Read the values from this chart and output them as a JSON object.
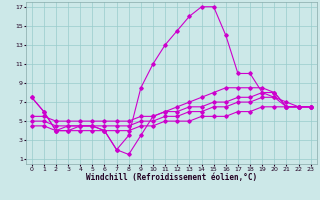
{
  "xlabel": "Windchill (Refroidissement éolien,°C)",
  "bg_color": "#cce8e8",
  "grid_color": "#99cccc",
  "line_color": "#cc00cc",
  "xlim": [
    -0.5,
    23.5
  ],
  "ylim": [
    0.5,
    17.5
  ],
  "xticks": [
    0,
    1,
    2,
    3,
    4,
    5,
    6,
    7,
    8,
    9,
    10,
    11,
    12,
    13,
    14,
    15,
    16,
    17,
    18,
    19,
    20,
    21,
    22,
    23
  ],
  "yticks": [
    1,
    3,
    5,
    7,
    9,
    11,
    13,
    15,
    17
  ],
  "line1_x": [
    0,
    1,
    2,
    3,
    4,
    5,
    6,
    7,
    8,
    9,
    10,
    11,
    12,
    13,
    14,
    15,
    16,
    17,
    18,
    19,
    20,
    21,
    22,
    23
  ],
  "line1_y": [
    7.5,
    6.0,
    4.0,
    4.0,
    4.5,
    4.5,
    4.0,
    2.0,
    3.5,
    8.5,
    11.0,
    13.0,
    14.5,
    16.0,
    17.0,
    17.0,
    14.0,
    10.0,
    10.0,
    8.0,
    7.5,
    7.0,
    6.5,
    6.5
  ],
  "line2_x": [
    0,
    1,
    2,
    3,
    4,
    5,
    6,
    7,
    8,
    9,
    10,
    11,
    12,
    13,
    14,
    15,
    16,
    17,
    18,
    19,
    20,
    21,
    22,
    23
  ],
  "line2_y": [
    5.5,
    5.5,
    5.0,
    5.0,
    5.0,
    5.0,
    5.0,
    5.0,
    5.0,
    5.5,
    5.5,
    6.0,
    6.0,
    6.5,
    6.5,
    7.0,
    7.0,
    7.5,
    7.5,
    8.0,
    8.0,
    6.5,
    6.5,
    6.5
  ],
  "line3_x": [
    0,
    1,
    2,
    3,
    4,
    5,
    6,
    7,
    8,
    9,
    10,
    11,
    12,
    13,
    14,
    15,
    16,
    17,
    18,
    19,
    20,
    21,
    22,
    23
  ],
  "line3_y": [
    5.0,
    5.0,
    4.5,
    4.5,
    4.5,
    4.5,
    4.5,
    4.5,
    4.5,
    5.0,
    5.0,
    5.5,
    5.5,
    6.0,
    6.0,
    6.5,
    6.5,
    7.0,
    7.0,
    7.5,
    7.5,
    6.5,
    6.5,
    6.5
  ],
  "line4_x": [
    0,
    1,
    2,
    3,
    4,
    5,
    6,
    7,
    8,
    9,
    10,
    11,
    12,
    13,
    14,
    15,
    16,
    17,
    18,
    19,
    20,
    21,
    22,
    23
  ],
  "line4_y": [
    4.5,
    4.5,
    4.0,
    4.0,
    4.0,
    4.0,
    4.0,
    4.0,
    4.0,
    4.5,
    4.5,
    5.0,
    5.0,
    5.0,
    5.5,
    5.5,
    5.5,
    6.0,
    6.0,
    6.5,
    6.5,
    6.5,
    6.5,
    6.5
  ],
  "line5_x": [
    0,
    1,
    2,
    3,
    4,
    5,
    6,
    7,
    8,
    9,
    10,
    11,
    12,
    13,
    14,
    15,
    16,
    17,
    18,
    19,
    20,
    21,
    22,
    23
  ],
  "line5_y": [
    7.5,
    6.0,
    4.0,
    4.5,
    4.5,
    4.5,
    4.0,
    2.0,
    1.5,
    3.5,
    5.5,
    6.0,
    6.5,
    7.0,
    7.5,
    8.0,
    8.5,
    8.5,
    8.5,
    8.5,
    8.0,
    6.5,
    6.5,
    6.5
  ]
}
